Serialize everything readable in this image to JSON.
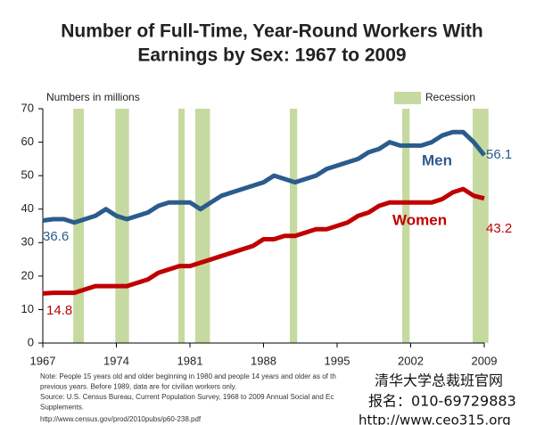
{
  "chart_data": {
    "type": "line",
    "title": [
      "Number of Full-Time, Year-Round Workers With",
      "Earnings by Sex: 1967 to 2009"
    ],
    "y_axis_label": "Numbers in millions",
    "x": [
      1967,
      1968,
      1969,
      1970,
      1971,
      1972,
      1973,
      1974,
      1975,
      1976,
      1977,
      1978,
      1979,
      1980,
      1981,
      1982,
      1983,
      1984,
      1985,
      1986,
      1987,
      1988,
      1989,
      1990,
      1991,
      1992,
      1993,
      1994,
      1995,
      1996,
      1997,
      1998,
      1999,
      2000,
      2001,
      2002,
      2003,
      2004,
      2005,
      2006,
      2007,
      2008,
      2009
    ],
    "series": [
      {
        "name": "Men",
        "color": "#2b5c8c",
        "values": [
          36.6,
          37,
          37,
          36,
          37,
          38,
          40,
          38,
          37,
          38,
          39,
          41,
          42,
          42,
          42,
          40,
          42,
          44,
          45,
          46,
          47,
          48,
          50,
          49,
          48,
          49,
          50,
          52,
          53,
          54,
          55,
          57,
          58,
          60,
          59,
          59,
          59,
          60,
          62,
          63,
          63,
          60,
          56.1
        ]
      },
      {
        "name": "Women",
        "color": "#c00000",
        "values": [
          14.8,
          15,
          15,
          15,
          16,
          17,
          17,
          17,
          17,
          18,
          19,
          21,
          22,
          23,
          23,
          24,
          25,
          26,
          27,
          28,
          29,
          31,
          31,
          32,
          32,
          33,
          34,
          34,
          35,
          36,
          38,
          39,
          41,
          42,
          42,
          42,
          42,
          42,
          43,
          45,
          46,
          44,
          43.2
        ]
      }
    ],
    "recession_label": "Recession",
    "recession_color": "#c6d9a0",
    "recessions": [
      [
        1969.9,
        1970.9
      ],
      [
        1973.9,
        1975.2
      ],
      [
        1979.9,
        1980.5
      ],
      [
        1981.5,
        1982.9
      ],
      [
        1990.5,
        1991.2
      ],
      [
        2001.2,
        2001.9
      ],
      [
        2007.9,
        2009.4
      ]
    ],
    "xlim": [
      1967,
      2009
    ],
    "xticks": [
      1967,
      1974,
      1981,
      1988,
      1995,
      2002,
      2009
    ],
    "ylim": [
      0,
      70
    ],
    "yticks": [
      0,
      10,
      20,
      30,
      40,
      50,
      60,
      70
    ],
    "notes": [
      "Note: People 15 years old and older beginning in 1980 and people 14 years and older as of th",
      "previous years. Before 1989, data are for civilian workers only.",
      "Source:  U.S. Census Bureau, Current Population Survey, 1968 to 2009 Annual Social and Ec",
      "Supplements.",
      "http://www.census.gov/prod/2010pubs/p60-238.pdf"
    ]
  },
  "watermark": [
    "清华大学总裁班官网",
    "报名：010-69729883",
    "http://www.ceo315.org"
  ]
}
